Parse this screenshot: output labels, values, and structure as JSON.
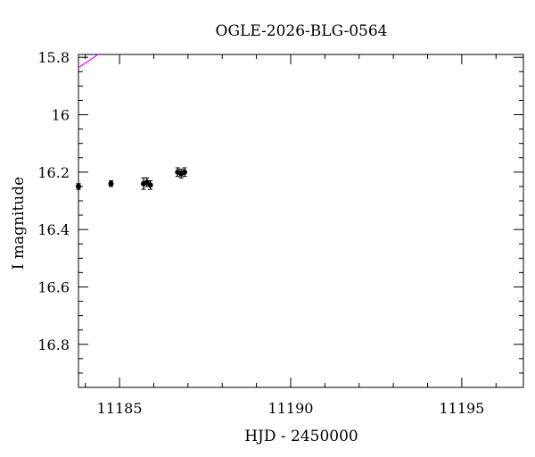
{
  "chart_data": {
    "type": "scatter",
    "title": "OGLE-2026-BLG-0564",
    "xlabel": "HJD - 2450000",
    "ylabel": "I magnitude",
    "xlim": [
      11183.8,
      11196.8
    ],
    "ylim": [
      16.95,
      15.79
    ],
    "y_inverted": true,
    "x_ticks": [
      11185,
      11190,
      11195
    ],
    "x_tick_labels": [
      "11185",
      "11190",
      "11195"
    ],
    "y_ticks": [
      15.8,
      16.0,
      16.2,
      16.4,
      16.6,
      16.8
    ],
    "y_tick_labels": [
      "15.8",
      "16",
      "16.2",
      "16.4",
      "16.6",
      "16.8"
    ],
    "grid": false,
    "series": [
      {
        "kind": "points",
        "color": "#000000",
        "points": [
          {
            "x": 11183.8,
            "y": 16.25,
            "err": 0.01
          },
          {
            "x": 11184.75,
            "y": 16.24,
            "err": 0.01
          },
          {
            "x": 11185.7,
            "y": 16.24,
            "err": 0.02
          },
          {
            "x": 11185.8,
            "y": 16.235,
            "err": 0.015
          },
          {
            "x": 11185.9,
            "y": 16.245,
            "err": 0.015
          },
          {
            "x": 11186.7,
            "y": 16.2,
            "err": 0.015
          },
          {
            "x": 11186.8,
            "y": 16.205,
            "err": 0.015
          },
          {
            "x": 11186.9,
            "y": 16.2,
            "err": 0.015
          }
        ]
      },
      {
        "kind": "model",
        "color": "#ff00ff",
        "pspl": {
          "t0": 11192.3,
          "tE": 10.5,
          "u0": 0.2,
          "baseline": 16.27
        },
        "clip_mag": 15.79
      }
    ]
  }
}
